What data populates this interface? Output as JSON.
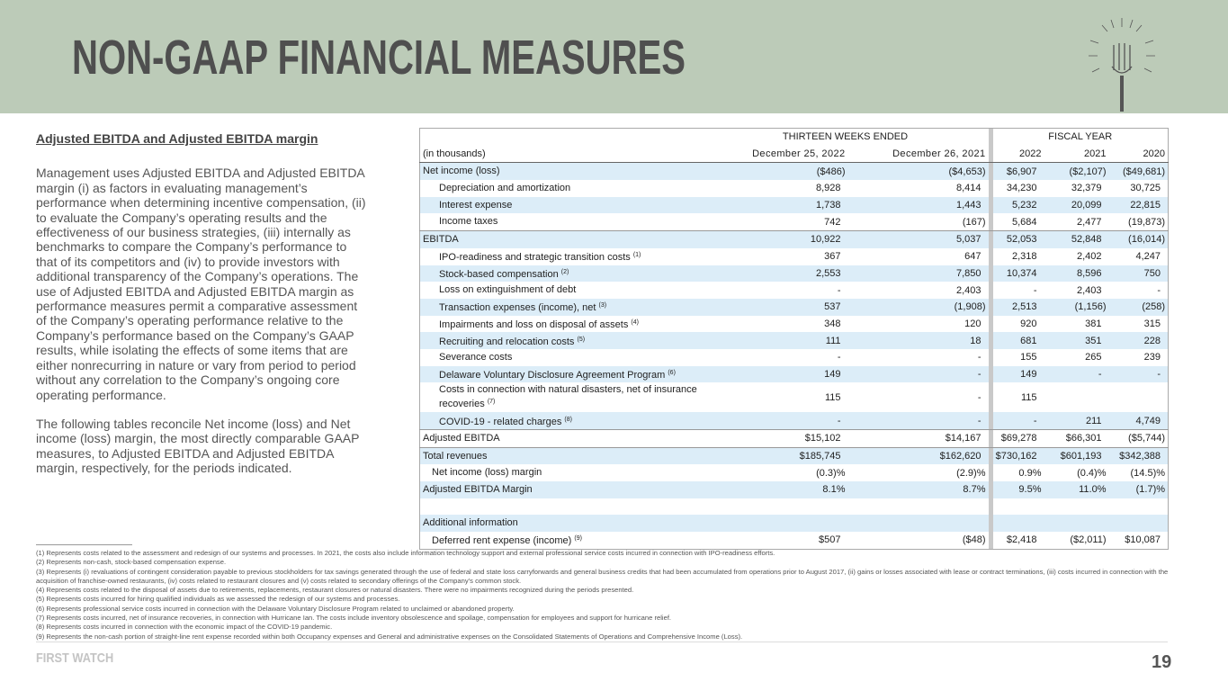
{
  "header": {
    "title": "NON-GAAP FINANCIAL MEASURES"
  },
  "left": {
    "heading": "Adjusted EBITDA and Adjusted EBITDA margin",
    "paragraphs": [
      "Management uses Adjusted EBITDA and Adjusted EBITDA margin (i) as factors in evaluating management’s performance when determining incentive compensation, (ii) to evaluate the Company’s operating results and the effectiveness of our business strategies, (iii) internally as benchmarks to compare the Company’s performance to that of its competitors and (iv) to provide investors with additional transparency of the Company’s operations. The use of Adjusted EBITDA and Adjusted EBITDA margin as performance measures permit a comparative assessment of the Company’s operating performance relative to the Company’s performance based on the Company’s GAAP results, while isolating the effects of some items that are either nonrecurring in nature or vary from period to period without any correlation to the Company’s ongoing core operating performance.",
      "The following tables reconcile Net income (loss) and Net income (loss) margin, the most directly comparable GAAP measures, to Adjusted EBITDA and Adjusted EBITDA margin, respectively, for the periods indicated."
    ]
  },
  "table": {
    "group_headers": [
      "THIRTEEN WEEKS ENDED",
      "FISCAL YEAR"
    ],
    "columns": [
      "(in thousands)",
      "December 25, 2022",
      "December 26, 2021",
      "2022",
      "2021",
      "2020"
    ],
    "rows": [
      {
        "label": "Net income (loss)",
        "values": [
          "($486)",
          "($4,653)",
          "$6,907",
          "($2,107)",
          "($49,681)"
        ]
      },
      {
        "label": "Depreciation and amortization",
        "values": [
          "8,928",
          "8,414",
          "34,230",
          "32,379",
          "30,725"
        ]
      },
      {
        "label": "Interest expense",
        "values": [
          "1,738",
          "1,443",
          "5,232",
          "20,099",
          "22,815"
        ]
      },
      {
        "label": "Income taxes",
        "values": [
          "742",
          "(167)",
          "5,684",
          "2,477",
          "(19,873)"
        ]
      },
      {
        "label": "EBITDA",
        "values": [
          "10,922",
          "5,037",
          "52,053",
          "52,848",
          "(16,014)"
        ]
      },
      {
        "label": "IPO-readiness and strategic transition costs",
        "note": "(1)",
        "values": [
          "367",
          "647",
          "2,318",
          "2,402",
          "4,247"
        ]
      },
      {
        "label": "Stock-based compensation",
        "note": "(2)",
        "values": [
          "2,553",
          "7,850",
          "10,374",
          "8,596",
          "750"
        ]
      },
      {
        "label": "Loss on extinguishment of debt",
        "values": [
          "-",
          "2,403",
          "-",
          "2,403",
          "-"
        ]
      },
      {
        "label": "Transaction expenses (income), net",
        "note": "(3)",
        "values": [
          "537",
          "(1,908)",
          "2,513",
          "(1,156)",
          "(258)"
        ]
      },
      {
        "label": "Impairments and loss on disposal of assets",
        "note": "(4)",
        "values": [
          "348",
          "120",
          "920",
          "381",
          "315"
        ]
      },
      {
        "label": "Recruiting and relocation costs",
        "note": "(5)",
        "values": [
          "111",
          "18",
          "681",
          "351",
          "228"
        ]
      },
      {
        "label": "Severance costs",
        "values": [
          "-",
          "-",
          "155",
          "265",
          "239"
        ]
      },
      {
        "label": "Delaware Voluntary Disclosure Agreement Program",
        "note": "(6)",
        "values": [
          "149",
          "-",
          "149",
          "-",
          "-"
        ]
      },
      {
        "label": "Costs in connection with natural disasters, net of insurance recoveries",
        "note": "(7)",
        "values": [
          "115",
          "-",
          "115",
          null,
          null
        ]
      },
      {
        "label": "COVID-19 - related charges",
        "note": "(8)",
        "values": [
          "-",
          "-",
          "-",
          "211",
          "4,749"
        ]
      },
      {
        "label": "Adjusted EBITDA",
        "values": [
          "$15,102",
          "$14,167",
          "$69,278",
          "$66,301",
          "($5,744)"
        ]
      },
      {
        "label": "Total revenues",
        "values": [
          "$185,745",
          "$162,620",
          "$730,162",
          "$601,193",
          "$342,388"
        ]
      },
      {
        "label": "Net income (loss) margin",
        "values": [
          "(0.3)%",
          "(2.9)%",
          "0.9%",
          "(0.4)%",
          "(14.5)%"
        ]
      },
      {
        "label": "Adjusted EBITDA Margin",
        "values": [
          "8.1%",
          "8.7%",
          "9.5%",
          "11.0%",
          "(1.7)%"
        ]
      },
      {
        "label": "Additional information"
      },
      {
        "label": "Deferred rent expense (income)",
        "note": "(9)",
        "values": [
          "$507",
          "($48)",
          "$2,418",
          "($2,011)",
          "$10,087"
        ]
      }
    ]
  },
  "footnotes": [
    "(1) Represents costs related to the assessment and redesign of our systems and processes. In 2021, the costs also include information technology support and external professional service costs incurred in connection with IPO-readiness efforts.",
    "(2) Represents non-cash, stock-based compensation expense.",
    "(3) Represents (i) revaluations of contingent consideration payable to previous stockholders for tax savings generated through the use of federal and state loss carryforwards and general business credits that had been accumulated from operations prior to August 2017, (ii) gains or losses associated with lease or contract terminations, (iii) costs incurred in connection with the acquisition of franchise-owned restaurants, (iv) costs related to restaurant closures and (v) costs related to secondary offerings of the Company’s common stock.",
    "(4) Represents costs related to the disposal of assets due to retirements, replacements, restaurant closures or natural disasters. There were no impairments recognized during the periods presented.",
    "(5) Represents costs incurred for hiring qualified individuals as we assessed the redesign of our systems and processes.",
    "(6) Represents professional service costs incurred in connection with the Delaware Voluntary Disclosure Program related to unclaimed or abandoned property.",
    "(7) Represents costs incurred, net of insurance recoveries, in connection with Hurricane Ian. The costs include inventory obsolescence and spoilage, compensation for employees and support for hurricane relief.",
    "(8) Represents costs incurred in connection with the economic impact of the COVID-19 pandemic.",
    "(9) Represents the non-cash portion of straight-line rent expense recorded within both Occupancy expenses and General and administrative expenses on the Consolidated Statements of Operations and Comprehensive Income (Loss)."
  ],
  "footer": {
    "brand": "FIRST WATCH",
    "page": "19"
  }
}
